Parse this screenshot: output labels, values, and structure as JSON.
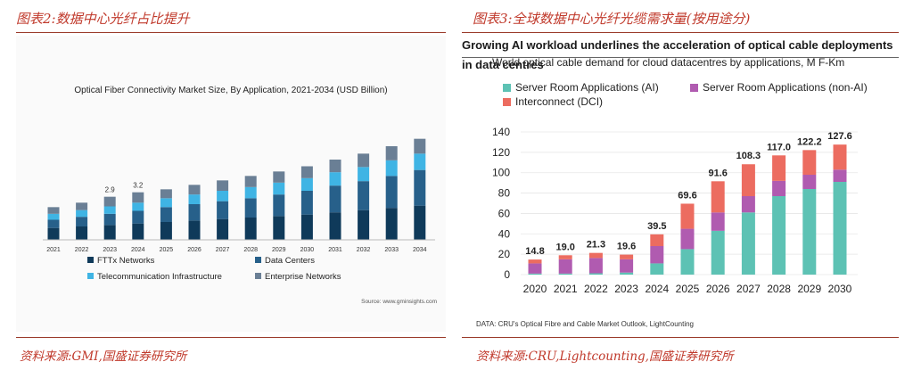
{
  "left_panel": {
    "figure_title": "图表2:数据中心光纤占比提升",
    "source": "资料来源:GMI,国盛证券研究所",
    "chart_note": "Source: www.gminsights.com"
  },
  "right_panel": {
    "figure_title": "图表3:全球数据中心光纤光缆需求量(按用途分)",
    "source": "资料来源:CRU,Lightcounting,国盛证券研究所",
    "banner": "Growing AI workload underlines the acceleration of optical cable deployments in data centres",
    "data_note": "DATA: CRU's Optical Fibre and Cable Market Outlook, LightCounting"
  },
  "colors": {
    "ftth": "#0f3a5a",
    "dc": "#27608a",
    "telecom": "#3fb4e4",
    "enterprise": "#6a7f95",
    "ai": "#5dc2b4",
    "nonai": "#b05bb0",
    "dci": "#ec6c60"
  },
  "chart_data": [
    {
      "type": "bar",
      "stacked": true,
      "title": "Optical Fiber Connectivity Market Size, By Application, 2021-2034 (USD Billion)",
      "categories": [
        "2021",
        "2022",
        "2023",
        "2024",
        "2025",
        "2026",
        "2027",
        "2028",
        "2029",
        "2030",
        "2031",
        "2032",
        "2033",
        "2034"
      ],
      "series": [
        {
          "name": "FTTx Networks",
          "values": [
            0.8,
            0.9,
            1.0,
            1.1,
            1.2,
            1.3,
            1.4,
            1.5,
            1.6,
            1.7,
            1.85,
            2.0,
            2.15,
            2.3
          ]
        },
        {
          "name": "Data Centers",
          "values": [
            0.55,
            0.65,
            0.75,
            0.85,
            1.0,
            1.1,
            1.2,
            1.3,
            1.45,
            1.6,
            1.8,
            1.95,
            2.15,
            2.4
          ]
        },
        {
          "name": "Telecommunication Infrastructure",
          "values": [
            0.4,
            0.45,
            0.5,
            0.55,
            0.6,
            0.65,
            0.7,
            0.75,
            0.8,
            0.85,
            0.9,
            0.95,
            1.05,
            1.1
          ]
        },
        {
          "name": "Enterprise Networks",
          "values": [
            0.45,
            0.5,
            0.65,
            0.7,
            0.6,
            0.65,
            0.7,
            0.75,
            0.75,
            0.8,
            0.85,
            0.9,
            0.95,
            1.0
          ]
        }
      ],
      "annotations": [
        {
          "category": "2023",
          "label": "2.9"
        },
        {
          "category": "2024",
          "label": "3.2"
        }
      ],
      "ylim": [
        0,
        7.5
      ],
      "legend": "bottom"
    },
    {
      "type": "bar",
      "stacked": true,
      "title": "World optical cable demand for cloud datacentres by applications, M F-Km",
      "categories": [
        "2020",
        "2021",
        "2022",
        "2023",
        "2024",
        "2025",
        "2026",
        "2027",
        "2028",
        "2029",
        "2030"
      ],
      "series": [
        {
          "name": "Server Room Applications (AI)",
          "values": [
            1.0,
            1.0,
            1.3,
            2.0,
            11.0,
            25.0,
            43.0,
            61.0,
            77.0,
            84.0,
            91.0
          ]
        },
        {
          "name": "Server Room Applications (non-AI)",
          "values": [
            10.0,
            14.0,
            15.0,
            13.0,
            17.0,
            20.0,
            18.0,
            16.0,
            15.0,
            14.0,
            12.0
          ]
        },
        {
          "name": "Interconnect (DCI)",
          "values": [
            3.8,
            4.0,
            5.0,
            4.6,
            11.5,
            24.6,
            30.6,
            31.3,
            25.0,
            24.2,
            24.6
          ]
        }
      ],
      "totals": [
        "14.8",
        "19.0",
        "21.3",
        "19.6",
        "39.5",
        "69.6",
        "91.6",
        "108.3",
        "117.0",
        "122.2",
        "127.6"
      ],
      "yticks": [
        "0",
        "20",
        "40",
        "60",
        "80",
        "100",
        "120",
        "140"
      ],
      "ylim": [
        0,
        140
      ],
      "legend": "top"
    }
  ]
}
